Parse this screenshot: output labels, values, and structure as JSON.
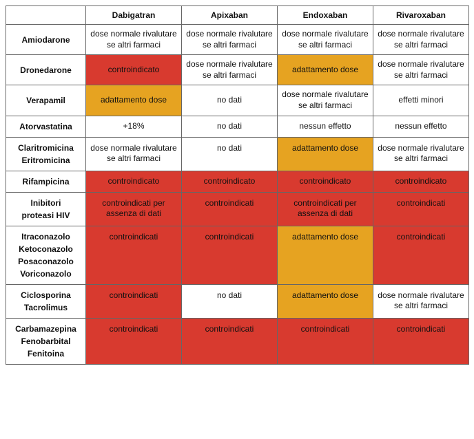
{
  "colors": {
    "none": "#ffffff",
    "red": "#d83a2f",
    "orange": "#e6a321",
    "border": "#666666"
  },
  "columns": [
    "Dabigatran",
    "Apixaban",
    "Endoxaban",
    "Rivaroxaban"
  ],
  "rows": [
    {
      "label": "Amiodarone",
      "cells": [
        {
          "text": "dose normale  rivalutare se altri farmaci",
          "bg": "none"
        },
        {
          "text": "dose normale  rivalutare se altri farmaci",
          "bg": "none"
        },
        {
          "text": "dose normale  rivalutare se altri farmaci",
          "bg": "none"
        },
        {
          "text": "dose normale  rivalutare se altri farmaci",
          "bg": "none"
        }
      ]
    },
    {
      "label": "Dronedarone",
      "cells": [
        {
          "text": "controindicato",
          "bg": "red"
        },
        {
          "text": "dose normale  rivalutare se altri farmaci",
          "bg": "none"
        },
        {
          "text": "adattamento dose",
          "bg": "orange"
        },
        {
          "text": "dose normale  rivalutare se altri farmaci",
          "bg": "none"
        }
      ]
    },
    {
      "label": "Verapamil",
      "cells": [
        {
          "text": "adattamento dose",
          "bg": "orange"
        },
        {
          "text": "no dati",
          "bg": "none"
        },
        {
          "text": "dose normale  rivalutare se altri farmaci",
          "bg": "none"
        },
        {
          "text": "effetti minori",
          "bg": "none"
        }
      ]
    },
    {
      "label": "Atorvastatina",
      "cells": [
        {
          "text": "+18%",
          "bg": "none"
        },
        {
          "text": "no dati",
          "bg": "none"
        },
        {
          "text": "nessun effetto",
          "bg": "none"
        },
        {
          "text": "nessun effetto",
          "bg": "none"
        }
      ]
    },
    {
      "label": "Claritromicina\nEritromicina",
      "cells": [
        {
          "text": "dose normale  rivalutare se altri farmaci",
          "bg": "none"
        },
        {
          "text": "no dati",
          "bg": "none"
        },
        {
          "text": "adattamento dose",
          "bg": "orange"
        },
        {
          "text": "dose normale  rivalutare se altri farmaci",
          "bg": "none"
        }
      ]
    },
    {
      "label": "Rifampicina",
      "cells": [
        {
          "text": "controindicato",
          "bg": "red"
        },
        {
          "text": "controindicato",
          "bg": "red"
        },
        {
          "text": "controindicato",
          "bg": "red"
        },
        {
          "text": "controindicato",
          "bg": "red"
        }
      ]
    },
    {
      "label": "Inibitori\nproteasi HIV",
      "cells": [
        {
          "text": "controindicati per assenza di dati",
          "bg": "red"
        },
        {
          "text": "controindicati",
          "bg": "red"
        },
        {
          "text": "controindicati per assenza di dati",
          "bg": "red"
        },
        {
          "text": "controindicati",
          "bg": "red"
        }
      ]
    },
    {
      "label": "Itraconazolo\nKetoconazolo\nPosaconazolo\nVoriconazolo",
      "cells": [
        {
          "text": "controindicati",
          "bg": "red"
        },
        {
          "text": "controindicati",
          "bg": "red"
        },
        {
          "text": "adattamento dose",
          "bg": "orange"
        },
        {
          "text": "controindicati",
          "bg": "red"
        }
      ]
    },
    {
      "label": "Ciclosporina\nTacrolimus",
      "cells": [
        {
          "text": "controindicati",
          "bg": "red"
        },
        {
          "text": "no dati",
          "bg": "none"
        },
        {
          "text": "adattamento dose",
          "bg": "orange"
        },
        {
          "text": "dose normale  rivalutare se altri farmaci",
          "bg": "none"
        }
      ]
    },
    {
      "label": "Carbamazepina\nFenobarbital\nFenitoina",
      "cells": [
        {
          "text": "controindicati",
          "bg": "red"
        },
        {
          "text": "controindicati",
          "bg": "red"
        },
        {
          "text": "controindicati",
          "bg": "red"
        },
        {
          "text": "controindicati",
          "bg": "red"
        }
      ]
    }
  ],
  "column_widths": [
    "116px",
    "139px",
    "139px",
    "139px",
    "139px"
  ]
}
